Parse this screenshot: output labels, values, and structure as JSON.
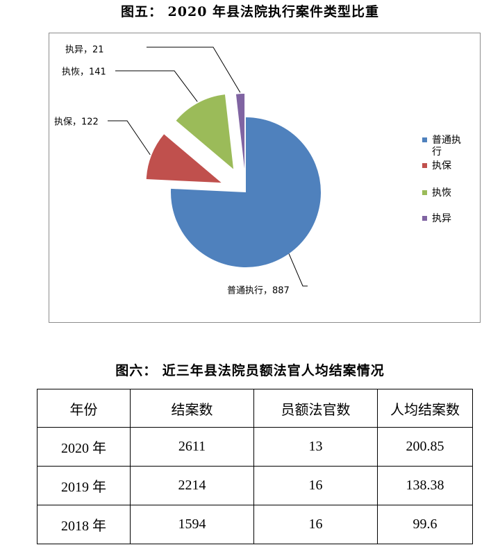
{
  "chart_title": "图五：   2020 年县法院执行案件类型比重",
  "chart_data": {
    "type": "pie",
    "categories": [
      "普通执行",
      "执保",
      "执恢",
      "执异"
    ],
    "values": [
      887,
      122,
      141,
      21
    ],
    "data_labels": [
      "普通执行，887",
      "执保，122",
      "执恢，141",
      "执异，21"
    ],
    "legend": [
      "普通执行",
      "执保",
      "执恢",
      "执异"
    ],
    "legend_position": "right",
    "colors": [
      "#4f81bd",
      "#c0504d",
      "#9bbb59",
      "#8064a2"
    ],
    "exploded": true
  },
  "table_title": "图六：   近三年县法院员额法官人均结案情况",
  "table": {
    "headers": [
      "年份",
      "结案数",
      "员额法官数",
      "人均结案数"
    ],
    "rows": [
      [
        "2020 年",
        "2611",
        "13",
        "200.85"
      ],
      [
        "2019 年",
        "2214",
        "16",
        "138.38"
      ],
      [
        "2018 年",
        "1594",
        "16",
        "99.6"
      ]
    ]
  }
}
